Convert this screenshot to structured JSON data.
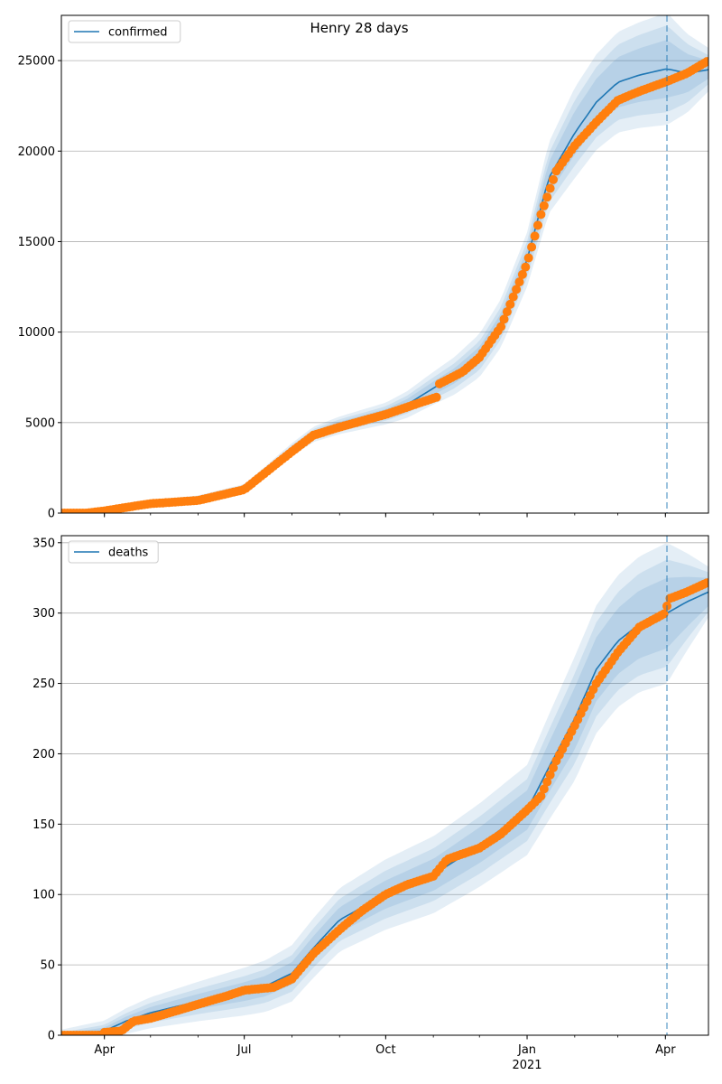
{
  "figure_title": "Henry 28 days",
  "colors": {
    "model_line": "#1f77b4",
    "observed_points": "#ff7f0e",
    "band": "#1f77b4",
    "grid": "#b0b0b0",
    "vline": "#1f77b4"
  },
  "x_ticks": [
    {
      "date": "2020-04-01",
      "label": "Apr",
      "sub": ""
    },
    {
      "date": "2020-07-01",
      "label": "Jul",
      "sub": ""
    },
    {
      "date": "2020-10-01",
      "label": "Oct",
      "sub": ""
    },
    {
      "date": "2021-01-01",
      "label": "Jan",
      "sub": "2021"
    },
    {
      "date": "2021-04-01",
      "label": "Apr",
      "sub": ""
    }
  ],
  "chart_data": [
    {
      "type": "line",
      "legend": [
        "confirmed"
      ],
      "legend_position": "upper-left",
      "grid": "y",
      "xlim": [
        "2020-03-04",
        "2021-04-29"
      ],
      "ylim": [
        0,
        27500
      ],
      "y_ticks": [
        0,
        5000,
        10000,
        15000,
        20000,
        25000
      ],
      "forecast_start": "2021-04-02",
      "model": {
        "name": "confirmed",
        "points": [
          [
            "2020-03-04",
            0
          ],
          [
            "2020-04-01",
            150
          ],
          [
            "2020-05-01",
            550
          ],
          [
            "2020-06-01",
            780
          ],
          [
            "2020-07-01",
            1350
          ],
          [
            "2020-07-15",
            2300
          ],
          [
            "2020-08-01",
            3500
          ],
          [
            "2020-08-15",
            4350
          ],
          [
            "2020-09-01",
            4850
          ],
          [
            "2020-10-01",
            5500
          ],
          [
            "2020-10-15",
            6000
          ],
          [
            "2020-11-01",
            6900
          ],
          [
            "2020-11-15",
            7600
          ],
          [
            "2020-12-01",
            8700
          ],
          [
            "2020-12-15",
            10500
          ],
          [
            "2021-01-01",
            14000
          ],
          [
            "2021-01-15",
            18500
          ],
          [
            "2021-02-01",
            21000
          ],
          [
            "2021-02-15",
            22700
          ],
          [
            "2021-03-01",
            23800
          ],
          [
            "2021-03-15",
            24200
          ],
          [
            "2021-04-02",
            24550
          ],
          [
            "2021-04-15",
            24300
          ],
          [
            "2021-04-29",
            24500
          ]
        ]
      },
      "bands_half_width": [
        [
          [
            "2020-03-04",
            20
          ],
          [
            "2020-07-01",
            120
          ],
          [
            "2020-10-01",
            250
          ],
          [
            "2021-01-01",
            600
          ],
          [
            "2021-02-01",
            1200
          ],
          [
            "2021-04-02",
            1600
          ],
          [
            "2021-04-29",
            500
          ]
        ],
        [
          [
            "2020-03-04",
            30
          ],
          [
            "2020-07-01",
            180
          ],
          [
            "2020-10-01",
            400
          ],
          [
            "2021-01-01",
            1000
          ],
          [
            "2021-02-01",
            1800
          ],
          [
            "2021-04-02",
            2400
          ],
          [
            "2021-04-29",
            800
          ]
        ],
        [
          [
            "2020-03-04",
            40
          ],
          [
            "2020-07-01",
            250
          ],
          [
            "2020-10-01",
            600
          ],
          [
            "2021-01-01",
            1500
          ],
          [
            "2021-02-01",
            2500
          ],
          [
            "2021-04-02",
            3100
          ],
          [
            "2021-04-29",
            1200
          ]
        ]
      ],
      "observed": {
        "start": "2020-03-04",
        "end": "2021-04-29",
        "step_days": 2,
        "anchors": [
          [
            "2020-03-04",
            0
          ],
          [
            "2020-03-20",
            0
          ],
          [
            "2020-04-01",
            120
          ],
          [
            "2020-04-20",
            380
          ],
          [
            "2020-05-01",
            520
          ],
          [
            "2020-06-01",
            700
          ],
          [
            "2020-07-01",
            1300
          ],
          [
            "2020-07-15",
            2250
          ],
          [
            "2020-08-01",
            3400
          ],
          [
            "2020-08-15",
            4300
          ],
          [
            "2020-09-01",
            4750
          ],
          [
            "2020-10-01",
            5450
          ],
          [
            "2020-10-20",
            6000
          ],
          [
            "2020-11-03",
            6400
          ],
          [
            "2020-11-04",
            7100
          ],
          [
            "2020-11-20",
            7800
          ],
          [
            "2020-12-01",
            8600
          ],
          [
            "2020-12-15",
            10300
          ],
          [
            "2021-01-01",
            13800
          ],
          [
            "2021-01-10",
            16500
          ],
          [
            "2021-01-20",
            18900
          ],
          [
            "2021-02-01",
            20300
          ],
          [
            "2021-02-15",
            21600
          ],
          [
            "2021-03-01",
            22800
          ],
          [
            "2021-03-15",
            23300
          ],
          [
            "2021-04-02",
            23850
          ],
          [
            "2021-04-15",
            24300
          ],
          [
            "2021-04-29",
            25000
          ]
        ]
      }
    },
    {
      "type": "line",
      "legend": [
        "deaths"
      ],
      "legend_position": "upper-left",
      "grid": "y",
      "xlim": [
        "2020-03-04",
        "2021-04-29"
      ],
      "ylim": [
        0,
        355
      ],
      "y_ticks": [
        0,
        50,
        100,
        150,
        200,
        250,
        300,
        350
      ],
      "forecast_start": "2021-04-02",
      "model": {
        "name": "deaths",
        "points": [
          [
            "2020-03-04",
            0
          ],
          [
            "2020-04-01",
            3
          ],
          [
            "2020-04-15",
            10
          ],
          [
            "2020-05-01",
            16
          ],
          [
            "2020-06-01",
            24
          ],
          [
            "2020-07-01",
            31
          ],
          [
            "2020-07-15",
            35
          ],
          [
            "2020-08-01",
            44
          ],
          [
            "2020-08-15",
            62
          ],
          [
            "2020-09-01",
            82
          ],
          [
            "2020-10-01",
            100
          ],
          [
            "2020-11-01",
            114
          ],
          [
            "2020-12-01",
            135
          ],
          [
            "2021-01-01",
            160
          ],
          [
            "2021-01-15",
            190
          ],
          [
            "2021-02-01",
            225
          ],
          [
            "2021-02-15",
            260
          ],
          [
            "2021-03-01",
            280
          ],
          [
            "2021-03-15",
            292
          ],
          [
            "2021-04-02",
            300
          ],
          [
            "2021-04-15",
            308
          ],
          [
            "2021-04-29",
            315
          ]
        ]
      },
      "bands_half_width": [
        [
          [
            "2020-03-04",
            1
          ],
          [
            "2020-05-01",
            4
          ],
          [
            "2020-08-01",
            8
          ],
          [
            "2020-10-01",
            10
          ],
          [
            "2021-01-01",
            14
          ],
          [
            "2021-02-01",
            22
          ],
          [
            "2021-04-02",
            25
          ],
          [
            "2021-04-29",
            10
          ]
        ],
        [
          [
            "2020-03-04",
            2
          ],
          [
            "2020-05-01",
            7
          ],
          [
            "2020-08-01",
            13
          ],
          [
            "2020-10-01",
            17
          ],
          [
            "2021-01-01",
            22
          ],
          [
            "2021-02-01",
            32
          ],
          [
            "2021-04-02",
            38
          ],
          [
            "2021-04-29",
            14
          ]
        ],
        [
          [
            "2020-03-04",
            4
          ],
          [
            "2020-05-01",
            11
          ],
          [
            "2020-08-01",
            20
          ],
          [
            "2020-10-01",
            25
          ],
          [
            "2021-01-01",
            32
          ],
          [
            "2021-02-01",
            44
          ],
          [
            "2021-04-02",
            50
          ],
          [
            "2021-04-29",
            18
          ]
        ]
      ],
      "observed": {
        "start": "2020-03-04",
        "end": "2021-04-29",
        "step_days": 2,
        "anchors": [
          [
            "2020-03-04",
            0
          ],
          [
            "2020-03-30",
            0
          ],
          [
            "2020-04-01",
            2
          ],
          [
            "2020-04-12",
            3
          ],
          [
            "2020-04-20",
            10
          ],
          [
            "2020-05-01",
            12
          ],
          [
            "2020-05-20",
            18
          ],
          [
            "2020-06-01",
            22
          ],
          [
            "2020-06-20",
            28
          ],
          [
            "2020-07-01",
            32
          ],
          [
            "2020-07-20",
            34
          ],
          [
            "2020-08-01",
            40
          ],
          [
            "2020-08-15",
            58
          ],
          [
            "2020-09-01",
            75
          ],
          [
            "2020-09-15",
            88
          ],
          [
            "2020-10-01",
            100
          ],
          [
            "2020-10-15",
            107
          ],
          [
            "2020-11-01",
            113
          ],
          [
            "2020-11-10",
            125
          ],
          [
            "2020-12-01",
            133
          ],
          [
            "2020-12-15",
            143
          ],
          [
            "2021-01-01",
            160
          ],
          [
            "2021-01-10",
            170
          ],
          [
            "2021-01-20",
            195
          ],
          [
            "2021-02-01",
            220
          ],
          [
            "2021-02-15",
            250
          ],
          [
            "2021-03-01",
            272
          ],
          [
            "2021-03-15",
            290
          ],
          [
            "2021-04-01",
            300
          ],
          [
            "2021-04-03",
            310
          ],
          [
            "2021-04-15",
            315
          ],
          [
            "2021-04-29",
            322
          ]
        ]
      }
    }
  ]
}
